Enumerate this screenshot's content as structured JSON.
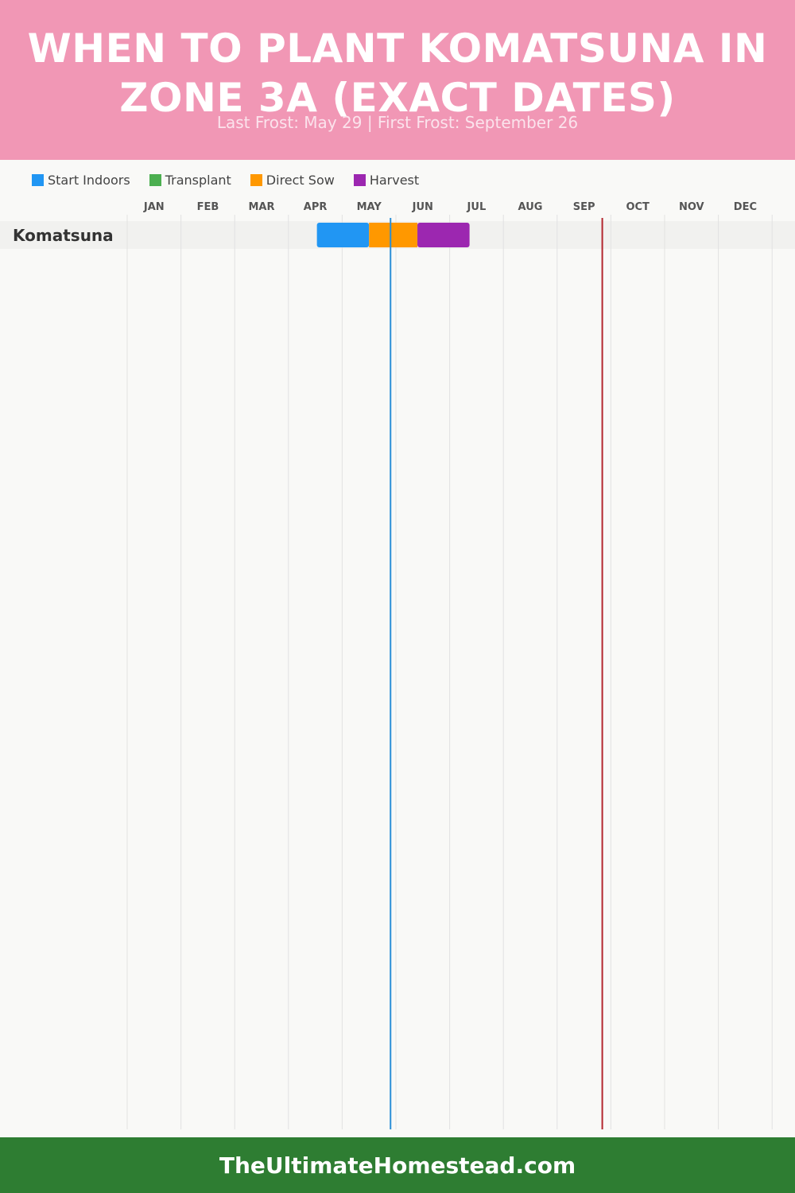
{
  "header": {
    "title": "WHEN TO PLANT KOMATSUNA IN ZONE 3A (EXACT DATES)",
    "subtitle": "Last Frost: May 29 | First Frost: September 26",
    "background_color": "#f197b5"
  },
  "legend": [
    {
      "label": "Start Indoors",
      "color": "#2196f3"
    },
    {
      "label": "Transplant",
      "color": "#4caf50"
    },
    {
      "label": "Direct Sow",
      "color": "#ff9800"
    },
    {
      "label": "Harvest",
      "color": "#9c27b0"
    }
  ],
  "chart_data": {
    "type": "gantt",
    "months": [
      "JAN",
      "FEB",
      "MAR",
      "APR",
      "MAY",
      "JUN",
      "JUL",
      "AUG",
      "SEP",
      "OCT",
      "NOV",
      "DEC"
    ],
    "rows": [
      {
        "name": "Komatsuna",
        "segments": [
          {
            "phase": "Start Indoors",
            "start": "Apr 17",
            "end": "May 15",
            "start_month": 3.53,
            "end_month": 4.5,
            "color": "#2196f3"
          },
          {
            "phase": "Direct Sow",
            "start": "May 15",
            "end": "Jun 12",
            "start_month": 4.5,
            "end_month": 5.4,
            "color": "#ff9800"
          },
          {
            "phase": "Harvest",
            "start": "Jun 12",
            "end": "Jul 11",
            "start_month": 5.4,
            "end_month": 6.37,
            "color": "#9c27b0"
          }
        ]
      }
    ],
    "markers": [
      {
        "name": "Last Frost",
        "date": "May 29",
        "month_value": 4.9,
        "color": "#2b8fd6"
      },
      {
        "name": "First Frost",
        "date": "September 26",
        "month_value": 8.84,
        "color": "#b3262e"
      }
    ],
    "grid": true
  },
  "footer": {
    "site": "TheUltimateHomestead.com",
    "background_color": "#2e7d32"
  }
}
